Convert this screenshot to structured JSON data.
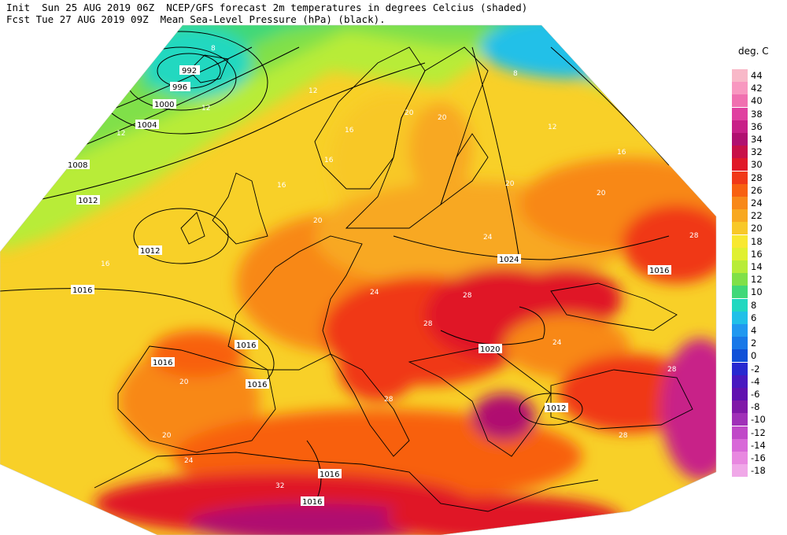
{
  "header": {
    "line1": "Init  Sun 25 AUG 2019 06Z  NCEP/GFS forecast 2m temperatures in degrees Celcius (shaded)",
    "line2": "Fcst Tue 27 AUG 2019 09Z  Mean Sea-Level Pressure (hPa) (black)."
  },
  "legend": {
    "title": "deg. C",
    "entries": [
      {
        "label": "44",
        "color": "#f8b8c8"
      },
      {
        "label": "42",
        "color": "#f898c0"
      },
      {
        "label": "40",
        "color": "#f070b0"
      },
      {
        "label": "38",
        "color": "#e040a0"
      },
      {
        "label": "36",
        "color": "#c82088"
      },
      {
        "label": "34",
        "color": "#b01070"
      },
      {
        "label": "32",
        "color": "#c81048"
      },
      {
        "label": "30",
        "color": "#e01828"
      },
      {
        "label": "28",
        "color": "#f03818"
      },
      {
        "label": "26",
        "color": "#f86010"
      },
      {
        "label": "24",
        "color": "#f88818"
      },
      {
        "label": "22",
        "color": "#f8a820"
      },
      {
        "label": "20",
        "color": "#f8c828"
      },
      {
        "label": "18",
        "color": "#f8e830"
      },
      {
        "label": "16",
        "color": "#e0f030"
      },
      {
        "label": "14",
        "color": "#b8ec38"
      },
      {
        "label": "12",
        "color": "#80e048"
      },
      {
        "label": "10",
        "color": "#40d878"
      },
      {
        "label": "8",
        "color": "#20d8c0"
      },
      {
        "label": "6",
        "color": "#20c0e8"
      },
      {
        "label": "4",
        "color": "#2098f0"
      },
      {
        "label": "2",
        "color": "#1878e8"
      },
      {
        "label": "0",
        "color": "#1050d8"
      },
      {
        "label": "-2",
        "color": "#2828d0"
      },
      {
        "label": "-4",
        "color": "#4818c0"
      },
      {
        "label": "-6",
        "color": "#6010b0"
      },
      {
        "label": "-8",
        "color": "#8018a8"
      },
      {
        "label": "-10",
        "color": "#a030b8"
      },
      {
        "label": "-12",
        "color": "#c048c8"
      },
      {
        "label": "-14",
        "color": "#d868d8"
      },
      {
        "label": "-16",
        "color": "#e888e0"
      },
      {
        "label": "-18",
        "color": "#f0a8e8"
      }
    ]
  },
  "isobars": [
    "992",
    "996",
    "1000",
    "1004",
    "1008",
    "1012",
    "1012",
    "1016",
    "1016",
    "1016",
    "1016",
    "1016",
    "1020",
    "1024",
    "1012",
    "1016",
    "1016"
  ],
  "temp_labels": [
    "8",
    "12",
    "12",
    "12",
    "16",
    "16",
    "16",
    "20",
    "20",
    "20",
    "20",
    "20",
    "24",
    "24",
    "24",
    "24",
    "28",
    "28",
    "28",
    "28",
    "28",
    "16",
    "16",
    "20",
    "12",
    "8",
    "20",
    "32",
    "28"
  ]
}
